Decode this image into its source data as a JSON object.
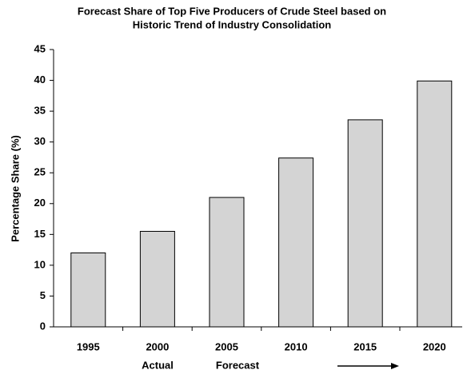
{
  "chart_data": {
    "type": "bar",
    "title": [
      "Forecast Share of Top Five Producers of Crude Steel based on",
      "Historic Trend of Industry Consolidation"
    ],
    "ylabel": "Percentage Share (%)",
    "categories": [
      "1995",
      "2000",
      "2005",
      "2010",
      "2015",
      "2020"
    ],
    "values": [
      12,
      15.5,
      21,
      27.4,
      33.6,
      39.9
    ],
    "color": "#d4d4d4",
    "ylim": [
      0,
      45
    ],
    "yticks": [
      0,
      5,
      10,
      15,
      20,
      25,
      30,
      35,
      40,
      45
    ],
    "grid": false,
    "annotations": [
      "Actual",
      "Forecast"
    ]
  }
}
